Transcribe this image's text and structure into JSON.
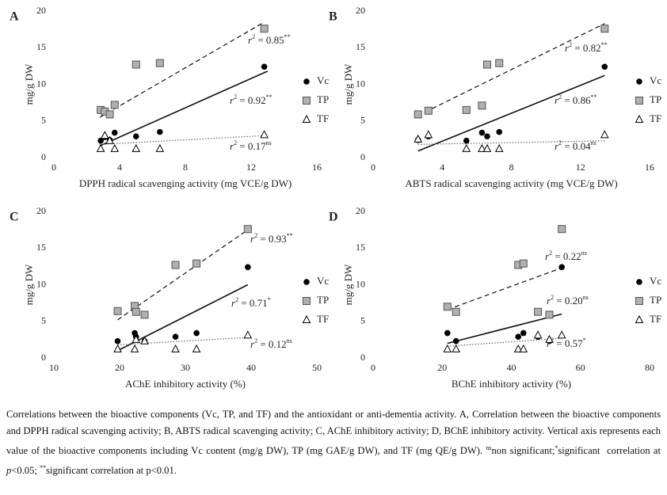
{
  "chart_data": [
    {
      "type": "scatter",
      "label": "A",
      "x_label": "DPPH radical scavenging activity (mg VCE/g DW)",
      "y_label": "mg/g DW",
      "x": [
        2.85,
        3.1,
        3.4,
        3.7,
        5.0,
        6.45,
        12.8
      ],
      "xlim": [
        0,
        16
      ],
      "xticks": [
        0,
        4,
        8,
        12,
        16
      ],
      "ylim": [
        0,
        20
      ],
      "yticks": [
        0,
        5,
        10,
        15,
        20
      ],
      "series": [
        {
          "name": "Vc",
          "color": "#000000",
          "marker": "circle",
          "values": [
            2.3,
            2.8,
            2.4,
            3.4,
            2.9,
            3.5,
            12.4
          ],
          "fit": {
            "x": [
              2.8,
              13.0
            ],
            "y": [
              1.6,
              11.8
            ],
            "style": "solid"
          },
          "r2_label": [
            "r",
            "2",
            " = 0.92",
            "**"
          ]
        },
        {
          "name": "TP",
          "color": "#b0b0b0",
          "marker": "square",
          "values": [
            6.5,
            6.3,
            5.9,
            7.2,
            12.7,
            12.9,
            17.6
          ],
          "fit": {
            "x": [
              2.8,
              12.8
            ],
            "y": [
              5.5,
              18.5
            ],
            "style": "dashed"
          },
          "r2_label": [
            "r",
            "2",
            " = 0.85",
            "**"
          ]
        },
        {
          "name": "TF",
          "color": "#ffffff",
          "marker": "triangle",
          "values": [
            1.2,
            3.0,
            2.3,
            1.2,
            1.2,
            1.2,
            3.1
          ],
          "fit": {
            "x": [
              2.8,
              12.8
            ],
            "y": [
              1.8,
              3.0
            ],
            "style": "dotted"
          },
          "r2_label": [
            "r",
            "2",
            " = 0.17",
            "ns"
          ]
        }
      ]
    },
    {
      "type": "scatter",
      "label": "B",
      "x_label": "ABTS radical scavenging activity (mg VCE/g DW)",
      "y_label": "mg/g DW",
      "x": [
        2.6,
        3.2,
        5.4,
        6.3,
        6.6,
        7.3,
        13.4
      ],
      "xlim": [
        0,
        16
      ],
      "xticks": [
        0,
        4,
        8,
        12,
        16
      ],
      "ylim": [
        0,
        20
      ],
      "yticks": [
        0,
        5,
        10,
        15,
        20
      ],
      "series": [
        {
          "name": "Vc",
          "color": "#000000",
          "marker": "circle",
          "values": [
            2.4,
            2.9,
            2.3,
            3.4,
            2.9,
            3.5,
            12.4
          ],
          "fit": {
            "x": [
              2.6,
              13.4
            ],
            "y": [
              0.9,
              11.2
            ],
            "style": "solid"
          },
          "r2_label": [
            "r",
            "2",
            " = 0.86",
            "**"
          ]
        },
        {
          "name": "TP",
          "color": "#b0b0b0",
          "marker": "square",
          "values": [
            5.9,
            6.4,
            6.5,
            7.1,
            12.7,
            12.9,
            17.6
          ],
          "fit": {
            "x": [
              3.0,
              13.4
            ],
            "y": [
              6.2,
              18.3
            ],
            "style": "dashed"
          },
          "r2_label": [
            "r",
            "2",
            " = 0.82",
            "**"
          ]
        },
        {
          "name": "TF",
          "color": "#ffffff",
          "marker": "triangle",
          "values": [
            2.5,
            3.1,
            1.2,
            1.2,
            1.2,
            1.2,
            3.1
          ],
          "fit": {
            "x": [
              2.6,
              13.4
            ],
            "y": [
              1.8,
              2.3
            ],
            "style": "dotted"
          },
          "r2_label": [
            "r",
            "2",
            " = 0.04",
            "ns"
          ]
        }
      ]
    },
    {
      "type": "scatter",
      "label": "C",
      "x_label": "AChE inhibitory activity (%)",
      "y_label": "mg/g DW",
      "x": [
        19.7,
        22.3,
        22.5,
        23.8,
        28.5,
        31.7,
        39.5
      ],
      "xlim": [
        10,
        50
      ],
      "xticks": [
        10,
        20,
        30,
        40,
        50
      ],
      "ylim": [
        0,
        20
      ],
      "yticks": [
        0,
        5,
        10,
        15,
        20
      ],
      "series": [
        {
          "name": "Vc",
          "color": "#000000",
          "marker": "circle",
          "values": [
            2.3,
            3.4,
            2.9,
            2.3,
            2.9,
            3.4,
            12.4
          ],
          "fit": {
            "x": [
              19.7,
              39.5
            ],
            "y": [
              1.0,
              10.0
            ],
            "style": "solid"
          },
          "r2_label": [
            "r",
            "2",
            " = 0.71",
            "*"
          ]
        },
        {
          "name": "TP",
          "color": "#b0b0b0",
          "marker": "square",
          "values": [
            6.4,
            7.1,
            6.3,
            5.9,
            12.7,
            12.9,
            17.6
          ],
          "fit": {
            "x": [
              19.7,
              39.5
            ],
            "y": [
              5.2,
              17.5
            ],
            "style": "dashed"
          },
          "r2_label": [
            "r",
            "2",
            " = 0.93",
            "**"
          ]
        },
        {
          "name": "TF",
          "color": "#ffffff",
          "marker": "triangle",
          "values": [
            1.2,
            1.2,
            2.5,
            2.3,
            1.2,
            1.2,
            3.1
          ],
          "fit": {
            "x": [
              19.7,
              39.5
            ],
            "y": [
              1.8,
              2.8
            ],
            "style": "dotted"
          },
          "r2_label": [
            "r",
            "2",
            " = 0.12",
            "ns"
          ]
        }
      ]
    },
    {
      "type": "scatter",
      "label": "D",
      "x_label": "BChE inhibitory activity (%)",
      "y_label": "mg/g DW",
      "x": [
        21.5,
        24.0,
        42.0,
        43.5,
        47.7,
        51.0,
        54.6
      ],
      "xlim": [
        0,
        80
      ],
      "xticks": [
        0,
        20,
        40,
        60,
        80
      ],
      "ylim": [
        0,
        20
      ],
      "yticks": [
        0,
        5,
        10,
        15,
        20
      ],
      "series": [
        {
          "name": "Vc",
          "color": "#000000",
          "marker": "circle",
          "values": [
            3.4,
            2.3,
            2.9,
            3.4,
            2.9,
            2.3,
            12.4
          ],
          "fit": {
            "x": [
              21.5,
              54.6
            ],
            "y": [
              2.0,
              6.0
            ],
            "style": "solid"
          },
          "r2_label": [
            "r",
            "2",
            " = 0.20",
            "ns"
          ]
        },
        {
          "name": "TP",
          "color": "#b0b0b0",
          "marker": "square",
          "values": [
            7.0,
            6.3,
            12.7,
            12.9,
            6.3,
            5.9,
            17.6
          ],
          "fit": {
            "x": [
              21.5,
              54.6
            ],
            "y": [
              6.6,
              12.3
            ],
            "style": "dashed"
          },
          "r2_label": [
            "r",
            "2",
            " = 0.22",
            "ns"
          ]
        },
        {
          "name": "TF",
          "color": "#ffffff",
          "marker": "triangle",
          "values": [
            1.2,
            1.2,
            1.2,
            1.2,
            3.1,
            2.5,
            3.1
          ],
          "fit": {
            "x": [
              21.5,
              54.6
            ],
            "y": [
              1.6,
              2.7
            ],
            "style": "dotted"
          },
          "r2_label": [
            "r",
            "2",
            " = 0.57",
            "*"
          ]
        }
      ]
    }
  ],
  "caption": [
    {
      "text": "Correlations between the bioactive components (Vc, TP, and TF) and the antioxidant or anti-dementia activity. A, Correlation between the bioactive components and DPPH radical scavenging activity; B, ABTS radical scavenging activity; C, AChE inhibitory activity; D, BChE inhibitory activity. Vertical axis represents each value of the bioactive components including Vc content (mg/g DW), TP (mg GAE/g DW), and TF (mg QE/g DW). ",
      "style": "normal"
    },
    {
      "text": "ns",
      "style": "sup"
    },
    {
      "text": "non significant;",
      "style": "normal"
    },
    {
      "text": "*",
      "style": "sup"
    },
    {
      "text": "significant  correlation at ",
      "style": "normal"
    },
    {
      "text": "p",
      "style": "italic"
    },
    {
      "text": "<0.05; ",
      "style": "normal"
    },
    {
      "text": "**",
      "style": "sup"
    },
    {
      "text": "significant correlation at p<0.01.",
      "style": "normal"
    }
  ]
}
